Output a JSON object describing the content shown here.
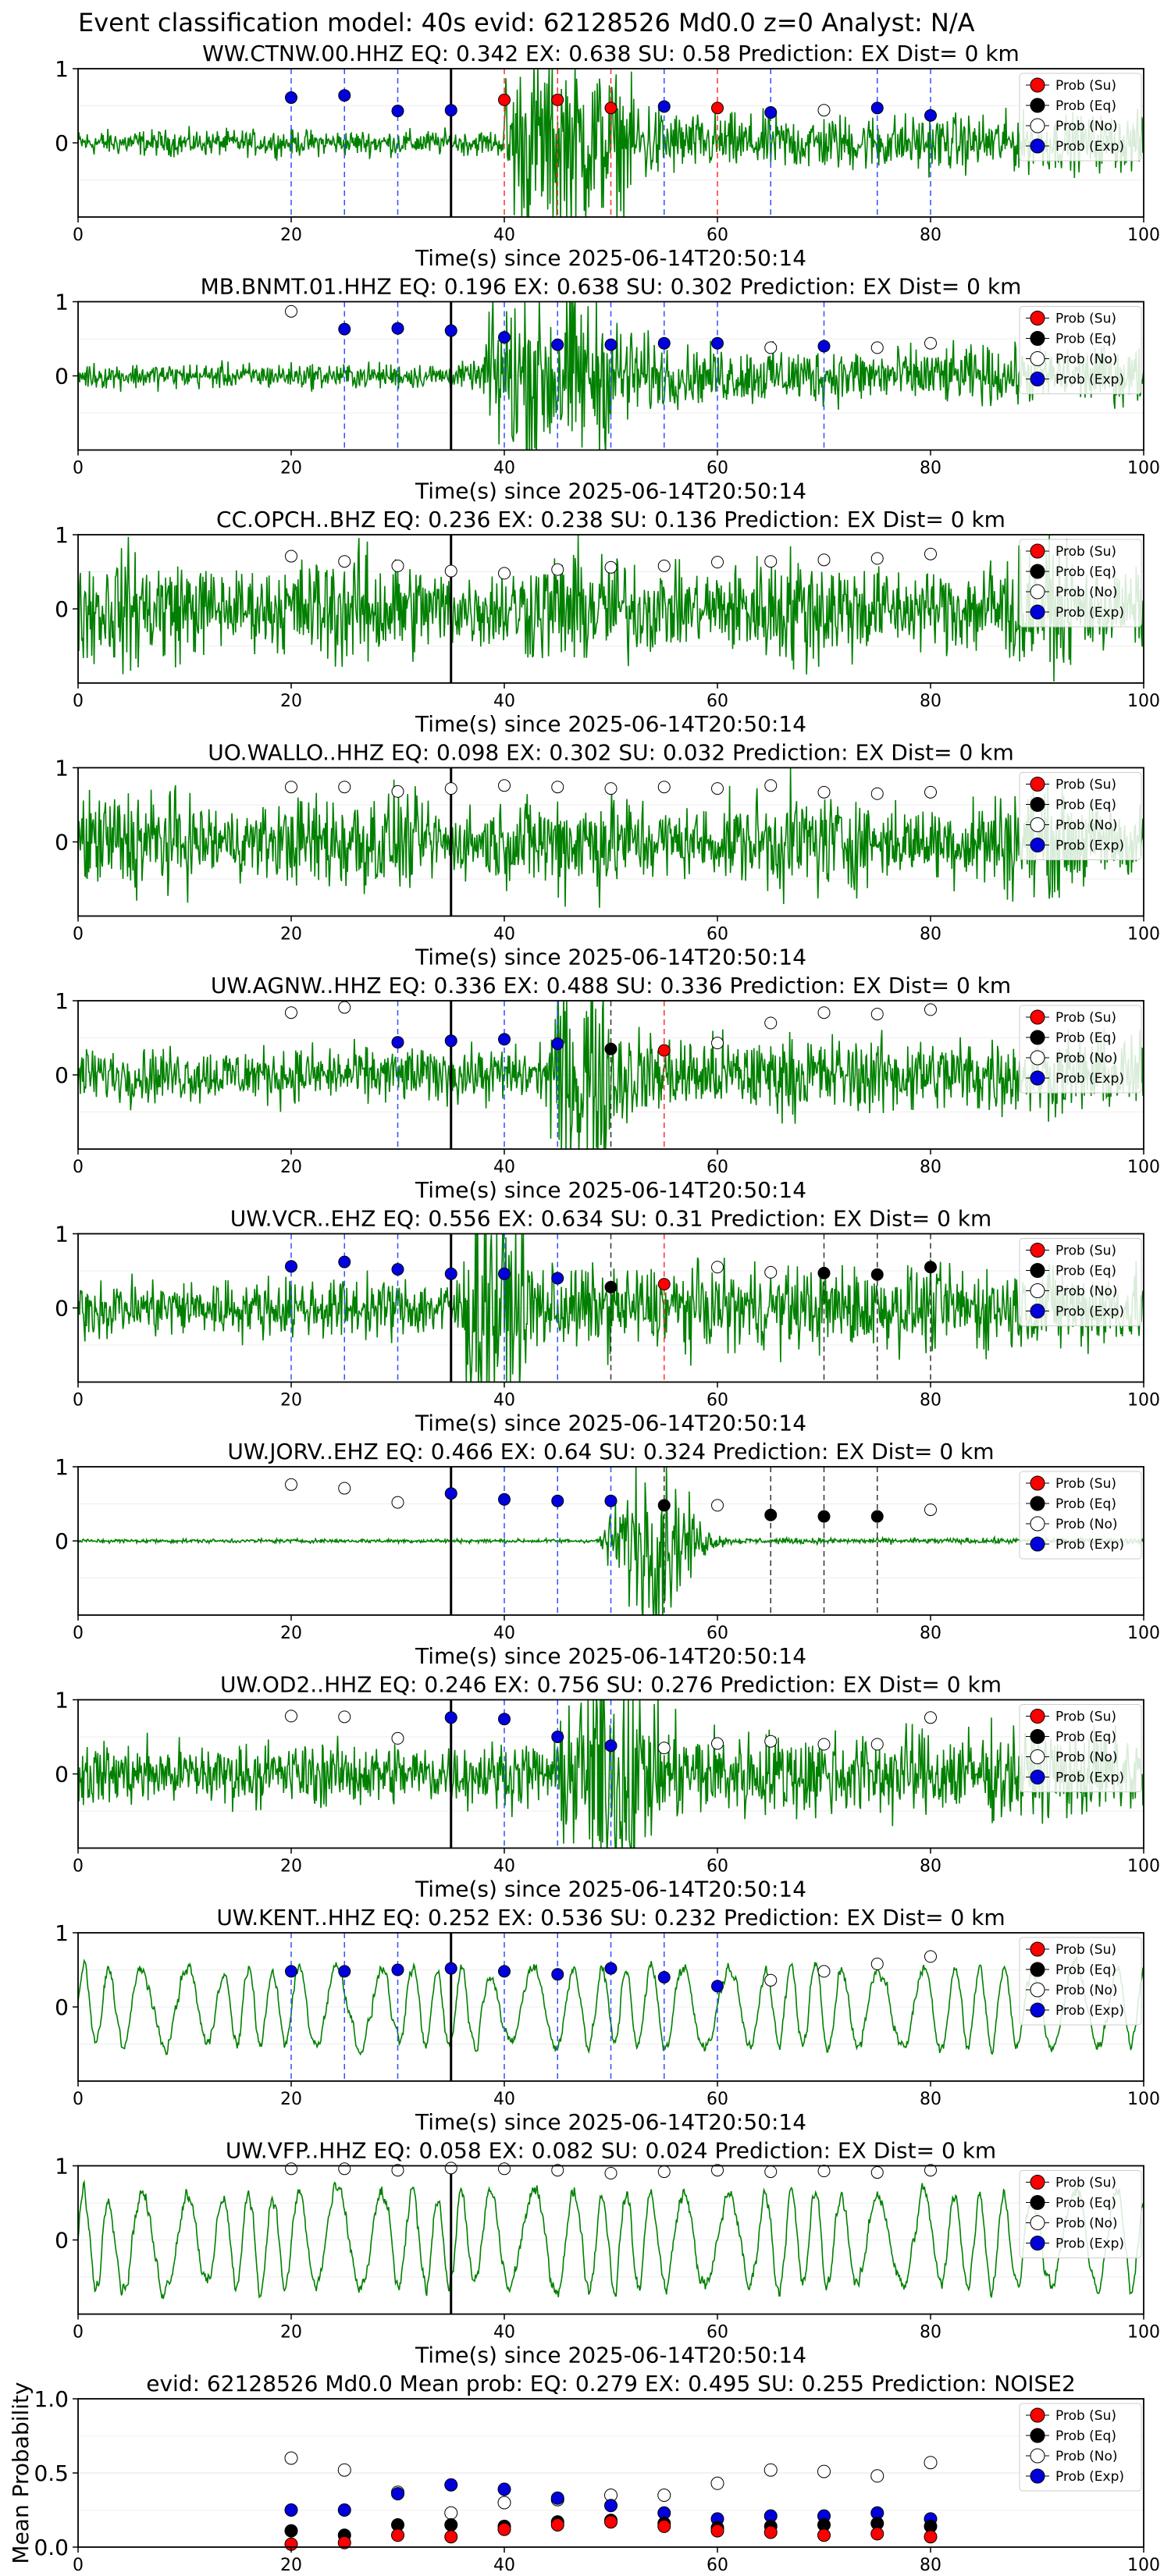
{
  "figure_title": "Event classification model: 40s evid: 62128526 Md0.0 z=0 Analyst: N/A",
  "x_ticks": [
    "0",
    "20",
    "40",
    "60",
    "80",
    "100"
  ],
  "legend_labels": [
    "Prob (Su)",
    "Prob (Eq)",
    "Prob (No)",
    "Prob (Exp)"
  ],
  "colors": {
    "su": "#ff0000",
    "eq": "#000000",
    "no": "#ffffff",
    "exp": "#0000dd",
    "wave": "#008000"
  },
  "chart_data": [
    {
      "type": "line",
      "title": "WW.CTNW.00.HHZ   EQ: 0.342  EX: 0.638  SU: 0.58   Prediction: EX    Dist= 0 km",
      "xlabel": "Time(s) since 2025-06-14T20:50:14",
      "ylabel": "",
      "xlim": [
        0,
        100
      ],
      "ylim": [
        -1,
        1
      ],
      "yticks": [
        "1",
        "0"
      ],
      "pick_time": 35,
      "wave": {
        "amp": 0.13,
        "style": "ramp",
        "burst_start": 40,
        "burst_peak": 45
      },
      "points": [
        {
          "t": 20,
          "p": 0.61,
          "cls": "exp"
        },
        {
          "t": 25,
          "p": 0.64,
          "cls": "exp"
        },
        {
          "t": 30,
          "p": 0.43,
          "cls": "exp"
        },
        {
          "t": 35,
          "p": 0.44,
          "cls": "exp"
        },
        {
          "t": 40,
          "p": 0.58,
          "cls": "su"
        },
        {
          "t": 45,
          "p": 0.58,
          "cls": "su"
        },
        {
          "t": 50,
          "p": 0.47,
          "cls": "su"
        },
        {
          "t": 55,
          "p": 0.49,
          "cls": "exp"
        },
        {
          "t": 60,
          "p": 0.47,
          "cls": "su"
        },
        {
          "t": 65,
          "p": 0.41,
          "cls": "exp"
        },
        {
          "t": 70,
          "p": 0.44,
          "cls": "no"
        },
        {
          "t": 75,
          "p": 0.47,
          "cls": "exp"
        },
        {
          "t": 80,
          "p": 0.37,
          "cls": "exp"
        }
      ]
    },
    {
      "type": "line",
      "title": "MB.BNMT.01.HHZ   EQ: 0.196  EX: 0.638  SU: 0.302   Prediction: EX    Dist= 0 km",
      "xlabel": "Time(s) since 2025-06-14T20:50:14",
      "ylabel": "",
      "xlim": [
        0,
        100
      ],
      "ylim": [
        -1,
        1
      ],
      "yticks": [
        "1",
        "0"
      ],
      "pick_time": 35,
      "wave": {
        "amp": 0.13,
        "style": "ramp",
        "burst_start": 38,
        "burst_peak": 44
      },
      "points": [
        {
          "t": 20,
          "p": 0.87,
          "cls": "no"
        },
        {
          "t": 25,
          "p": 0.63,
          "cls": "exp"
        },
        {
          "t": 30,
          "p": 0.64,
          "cls": "exp"
        },
        {
          "t": 35,
          "p": 0.61,
          "cls": "exp"
        },
        {
          "t": 40,
          "p": 0.52,
          "cls": "exp"
        },
        {
          "t": 45,
          "p": 0.42,
          "cls": "exp"
        },
        {
          "t": 50,
          "p": 0.42,
          "cls": "exp"
        },
        {
          "t": 55,
          "p": 0.44,
          "cls": "exp"
        },
        {
          "t": 60,
          "p": 0.44,
          "cls": "exp"
        },
        {
          "t": 65,
          "p": 0.38,
          "cls": "no"
        },
        {
          "t": 70,
          "p": 0.4,
          "cls": "exp"
        },
        {
          "t": 75,
          "p": 0.38,
          "cls": "no"
        },
        {
          "t": 80,
          "p": 0.44,
          "cls": "no"
        }
      ]
    },
    {
      "type": "line",
      "title": "CC.OPCH..BHZ   EQ: 0.236  EX: 0.238  SU: 0.136   Prediction: EX    Dist= 0 km",
      "xlabel": "Time(s) since 2025-06-14T20:50:14",
      "ylabel": "",
      "xlim": [
        0,
        100
      ],
      "ylim": [
        -1,
        1
      ],
      "yticks": [
        "1",
        "0"
      ],
      "pick_time": 35,
      "wave": {
        "amp": 0.55,
        "style": "noise"
      },
      "points": [
        {
          "t": 20,
          "p": 0.71,
          "cls": "no"
        },
        {
          "t": 25,
          "p": 0.64,
          "cls": "no"
        },
        {
          "t": 30,
          "p": 0.58,
          "cls": "no"
        },
        {
          "t": 35,
          "p": 0.51,
          "cls": "no"
        },
        {
          "t": 40,
          "p": 0.48,
          "cls": "no"
        },
        {
          "t": 45,
          "p": 0.53,
          "cls": "no"
        },
        {
          "t": 50,
          "p": 0.56,
          "cls": "no"
        },
        {
          "t": 55,
          "p": 0.58,
          "cls": "no"
        },
        {
          "t": 60,
          "p": 0.63,
          "cls": "no"
        },
        {
          "t": 65,
          "p": 0.64,
          "cls": "no"
        },
        {
          "t": 70,
          "p": 0.66,
          "cls": "no"
        },
        {
          "t": 75,
          "p": 0.68,
          "cls": "no"
        },
        {
          "t": 80,
          "p": 0.74,
          "cls": "no"
        }
      ]
    },
    {
      "type": "line",
      "title": "UO.WALLO..HHZ   EQ: 0.098  EX: 0.302  SU: 0.032   Prediction: EX    Dist= 0 km",
      "xlabel": "Time(s) since 2025-06-14T20:50:14",
      "ylabel": "",
      "xlim": [
        0,
        100
      ],
      "ylim": [
        -1,
        1
      ],
      "yticks": [
        "1",
        "0"
      ],
      "pick_time": 35,
      "wave": {
        "amp": 0.5,
        "style": "noise"
      },
      "points": [
        {
          "t": 20,
          "p": 0.74,
          "cls": "no"
        },
        {
          "t": 25,
          "p": 0.74,
          "cls": "no"
        },
        {
          "t": 30,
          "p": 0.68,
          "cls": "no"
        },
        {
          "t": 35,
          "p": 0.72,
          "cls": "no"
        },
        {
          "t": 40,
          "p": 0.76,
          "cls": "no"
        },
        {
          "t": 45,
          "p": 0.74,
          "cls": "no"
        },
        {
          "t": 50,
          "p": 0.72,
          "cls": "no"
        },
        {
          "t": 55,
          "p": 0.74,
          "cls": "no"
        },
        {
          "t": 60,
          "p": 0.72,
          "cls": "no"
        },
        {
          "t": 65,
          "p": 0.76,
          "cls": "no"
        },
        {
          "t": 70,
          "p": 0.67,
          "cls": "no"
        },
        {
          "t": 75,
          "p": 0.65,
          "cls": "no"
        },
        {
          "t": 80,
          "p": 0.67,
          "cls": "no"
        }
      ]
    },
    {
      "type": "line",
      "title": "UW.AGNW..HHZ   EQ: 0.336  EX: 0.488  SU: 0.336   Prediction: EX    Dist= 0 km",
      "xlabel": "Time(s) since 2025-06-14T20:50:14",
      "ylabel": "",
      "xlim": [
        0,
        100
      ],
      "ylim": [
        -1,
        1
      ],
      "yticks": [
        "1",
        "0"
      ],
      "pick_time": 35,
      "wave": {
        "amp": 0.28,
        "style": "burst",
        "burst_start": 44,
        "burst_peak": 47
      },
      "points": [
        {
          "t": 20,
          "p": 0.84,
          "cls": "no"
        },
        {
          "t": 25,
          "p": 0.91,
          "cls": "no"
        },
        {
          "t": 30,
          "p": 0.44,
          "cls": "exp"
        },
        {
          "t": 35,
          "p": 0.46,
          "cls": "exp"
        },
        {
          "t": 40,
          "p": 0.48,
          "cls": "exp"
        },
        {
          "t": 45,
          "p": 0.42,
          "cls": "exp"
        },
        {
          "t": 50,
          "p": 0.35,
          "cls": "eq"
        },
        {
          "t": 55,
          "p": 0.33,
          "cls": "su"
        },
        {
          "t": 60,
          "p": 0.43,
          "cls": "no"
        },
        {
          "t": 65,
          "p": 0.7,
          "cls": "no"
        },
        {
          "t": 70,
          "p": 0.84,
          "cls": "no"
        },
        {
          "t": 75,
          "p": 0.82,
          "cls": "no"
        },
        {
          "t": 80,
          "p": 0.88,
          "cls": "no"
        }
      ]
    },
    {
      "type": "line",
      "title": "UW.VCR..EHZ   EQ: 0.556  EX: 0.634  SU: 0.31   Prediction: EX    Dist= 0 km",
      "xlabel": "Time(s) since 2025-06-14T20:50:14",
      "ylabel": "",
      "xlim": [
        0,
        100
      ],
      "ylim": [
        -1,
        1
      ],
      "yticks": [
        "1",
        "0"
      ],
      "pick_time": 35,
      "wave": {
        "amp": 0.3,
        "style": "burst",
        "burst_start": 36,
        "burst_peak": 38
      },
      "points": [
        {
          "t": 20,
          "p": 0.56,
          "cls": "exp"
        },
        {
          "t": 25,
          "p": 0.62,
          "cls": "exp"
        },
        {
          "t": 30,
          "p": 0.52,
          "cls": "exp"
        },
        {
          "t": 35,
          "p": 0.46,
          "cls": "exp"
        },
        {
          "t": 40,
          "p": 0.46,
          "cls": "exp"
        },
        {
          "t": 45,
          "p": 0.4,
          "cls": "exp"
        },
        {
          "t": 50,
          "p": 0.28,
          "cls": "eq"
        },
        {
          "t": 55,
          "p": 0.32,
          "cls": "su"
        },
        {
          "t": 60,
          "p": 0.55,
          "cls": "no"
        },
        {
          "t": 65,
          "p": 0.48,
          "cls": "no"
        },
        {
          "t": 70,
          "p": 0.47,
          "cls": "eq"
        },
        {
          "t": 75,
          "p": 0.45,
          "cls": "eq"
        },
        {
          "t": 80,
          "p": 0.55,
          "cls": "eq"
        }
      ]
    },
    {
      "type": "line",
      "title": "UW.JORV..EHZ   EQ: 0.466  EX: 0.64  SU: 0.324   Prediction: EX    Dist= 0 km",
      "xlabel": "Time(s) since 2025-06-14T20:50:14",
      "ylabel": "",
      "xlim": [
        0,
        100
      ],
      "ylim": [
        -1,
        1
      ],
      "yticks": [
        "1",
        "0"
      ],
      "pick_time": 35,
      "wave": {
        "amp": 0.02,
        "style": "burst",
        "burst_start": 49,
        "burst_peak": 54
      },
      "points": [
        {
          "t": 20,
          "p": 0.76,
          "cls": "no"
        },
        {
          "t": 25,
          "p": 0.71,
          "cls": "no"
        },
        {
          "t": 30,
          "p": 0.52,
          "cls": "no"
        },
        {
          "t": 35,
          "p": 0.64,
          "cls": "exp"
        },
        {
          "t": 40,
          "p": 0.56,
          "cls": "exp"
        },
        {
          "t": 45,
          "p": 0.54,
          "cls": "exp"
        },
        {
          "t": 50,
          "p": 0.54,
          "cls": "exp"
        },
        {
          "t": 55,
          "p": 0.48,
          "cls": "eq"
        },
        {
          "t": 60,
          "p": 0.48,
          "cls": "no"
        },
        {
          "t": 65,
          "p": 0.35,
          "cls": "eq"
        },
        {
          "t": 70,
          "p": 0.33,
          "cls": "eq"
        },
        {
          "t": 75,
          "p": 0.33,
          "cls": "eq"
        },
        {
          "t": 80,
          "p": 0.42,
          "cls": "no"
        }
      ]
    },
    {
      "type": "line",
      "title": "UW.OD2..HHZ   EQ: 0.246  EX: 0.756  SU: 0.276   Prediction: EX    Dist= 0 km",
      "xlabel": "Time(s) since 2025-06-14T20:50:14",
      "ylabel": "",
      "xlim": [
        0,
        100
      ],
      "ylim": [
        -1,
        1
      ],
      "yticks": [
        "1",
        "0"
      ],
      "pick_time": 35,
      "wave": {
        "amp": 0.32,
        "style": "burst",
        "burst_start": 45,
        "burst_peak": 50
      },
      "points": [
        {
          "t": 20,
          "p": 0.78,
          "cls": "no"
        },
        {
          "t": 25,
          "p": 0.77,
          "cls": "no"
        },
        {
          "t": 30,
          "p": 0.48,
          "cls": "no"
        },
        {
          "t": 35,
          "p": 0.76,
          "cls": "exp"
        },
        {
          "t": 40,
          "p": 0.74,
          "cls": "exp"
        },
        {
          "t": 45,
          "p": 0.5,
          "cls": "exp"
        },
        {
          "t": 50,
          "p": 0.38,
          "cls": "exp"
        },
        {
          "t": 55,
          "p": 0.35,
          "cls": "no"
        },
        {
          "t": 60,
          "p": 0.41,
          "cls": "no"
        },
        {
          "t": 65,
          "p": 0.44,
          "cls": "no"
        },
        {
          "t": 70,
          "p": 0.4,
          "cls": "no"
        },
        {
          "t": 75,
          "p": 0.4,
          "cls": "no"
        },
        {
          "t": 80,
          "p": 0.76,
          "cls": "no"
        }
      ]
    },
    {
      "type": "line",
      "title": "UW.KENT..HHZ   EQ: 0.252  EX: 0.536  SU: 0.232   Prediction: EX    Dist= 0 km",
      "xlabel": "Time(s) since 2025-06-14T20:50:14",
      "ylabel": "",
      "xlim": [
        0,
        100
      ],
      "ylim": [
        -1,
        1
      ],
      "yticks": [
        "1",
        "0"
      ],
      "pick_time": 35,
      "wave": {
        "amp": 0.7,
        "style": "smooth"
      },
      "points": [
        {
          "t": 20,
          "p": 0.48,
          "cls": "exp"
        },
        {
          "t": 25,
          "p": 0.48,
          "cls": "exp"
        },
        {
          "t": 30,
          "p": 0.5,
          "cls": "exp"
        },
        {
          "t": 35,
          "p": 0.52,
          "cls": "exp"
        },
        {
          "t": 40,
          "p": 0.48,
          "cls": "exp"
        },
        {
          "t": 45,
          "p": 0.44,
          "cls": "exp"
        },
        {
          "t": 50,
          "p": 0.52,
          "cls": "exp"
        },
        {
          "t": 55,
          "p": 0.4,
          "cls": "exp"
        },
        {
          "t": 60,
          "p": 0.28,
          "cls": "exp"
        },
        {
          "t": 65,
          "p": 0.36,
          "cls": "no"
        },
        {
          "t": 70,
          "p": 0.48,
          "cls": "no"
        },
        {
          "t": 75,
          "p": 0.58,
          "cls": "no"
        },
        {
          "t": 80,
          "p": 0.68,
          "cls": "no"
        }
      ]
    },
    {
      "type": "line",
      "title": "UW.VFP..HHZ   EQ: 0.058  EX: 0.082  SU: 0.024   Prediction: EX    Dist= 0 km",
      "xlabel": "Time(s) since 2025-06-14T20:50:14",
      "ylabel": "",
      "xlim": [
        0,
        100
      ],
      "ylim": [
        -1,
        1
      ],
      "yticks": [
        "1",
        "0"
      ],
      "pick_time": 35,
      "wave": {
        "amp": 0.85,
        "style": "smooth"
      },
      "points": [
        {
          "t": 20,
          "p": 0.96,
          "cls": "no"
        },
        {
          "t": 25,
          "p": 0.96,
          "cls": "no"
        },
        {
          "t": 30,
          "p": 0.94,
          "cls": "no"
        },
        {
          "t": 35,
          "p": 0.97,
          "cls": "no"
        },
        {
          "t": 40,
          "p": 0.96,
          "cls": "no"
        },
        {
          "t": 45,
          "p": 0.94,
          "cls": "no"
        },
        {
          "t": 50,
          "p": 0.9,
          "cls": "no"
        },
        {
          "t": 55,
          "p": 0.92,
          "cls": "no"
        },
        {
          "t": 60,
          "p": 0.94,
          "cls": "no"
        },
        {
          "t": 65,
          "p": 0.92,
          "cls": "no"
        },
        {
          "t": 70,
          "p": 0.93,
          "cls": "no"
        },
        {
          "t": 75,
          "p": 0.91,
          "cls": "no"
        },
        {
          "t": 80,
          "p": 0.94,
          "cls": "no"
        }
      ]
    },
    {
      "type": "scatter",
      "title": "evid: 62128526  Md0.0   Mean prob:   EQ: 0.279  EX: 0.495  SU: 0.255   Prediction: NOISE2",
      "xlabel": "",
      "ylabel": "Mean Probability",
      "xlim": [
        0,
        100
      ],
      "ylim": [
        0,
        1
      ],
      "yticks": [
        "1.0",
        "0.5",
        "0.0"
      ],
      "x": [
        20,
        25,
        30,
        35,
        40,
        45,
        50,
        55,
        60,
        65,
        70,
        75,
        80
      ],
      "series": [
        {
          "name": "Prob (No)",
          "cls": "no",
          "values": [
            0.6,
            0.52,
            0.37,
            0.23,
            0.3,
            0.32,
            0.35,
            0.35,
            0.43,
            0.52,
            0.51,
            0.48,
            0.57
          ]
        },
        {
          "name": "Prob (Exp)",
          "cls": "exp",
          "values": [
            0.25,
            0.25,
            0.36,
            0.42,
            0.39,
            0.33,
            0.28,
            0.23,
            0.19,
            0.21,
            0.21,
            0.23,
            0.19
          ]
        },
        {
          "name": "Prob (Eq)",
          "cls": "eq",
          "values": [
            0.11,
            0.08,
            0.15,
            0.15,
            0.14,
            0.17,
            0.18,
            0.16,
            0.13,
            0.14,
            0.15,
            0.16,
            0.14
          ]
        },
        {
          "name": "Prob (Su)",
          "cls": "su",
          "values": [
            0.02,
            0.03,
            0.08,
            0.07,
            0.12,
            0.15,
            0.17,
            0.14,
            0.11,
            0.1,
            0.08,
            0.09,
            0.07
          ]
        }
      ]
    }
  ]
}
